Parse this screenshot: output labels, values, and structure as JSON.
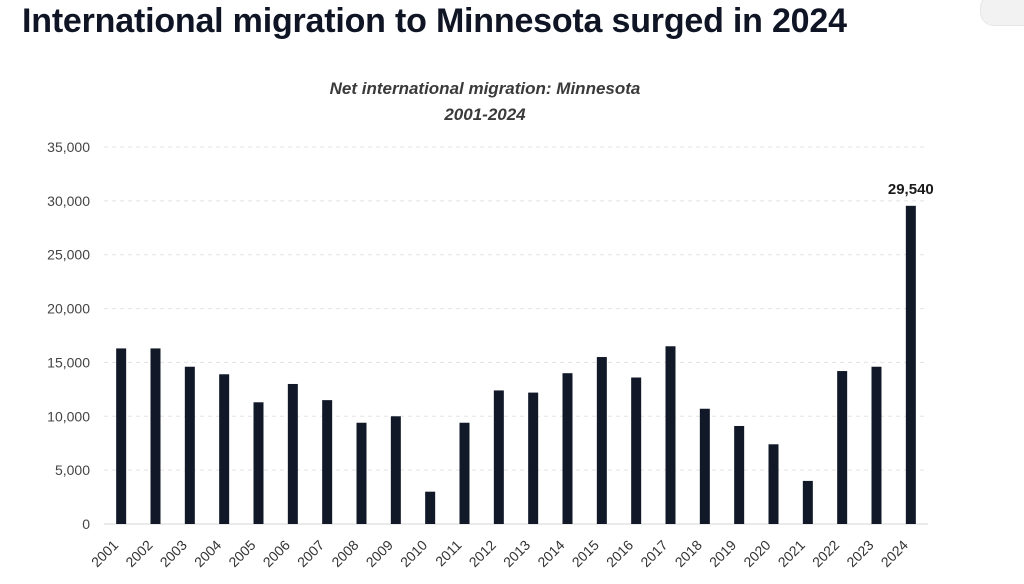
{
  "headline": "International migration to Minnesota surged in 2024",
  "chart_data": {
    "type": "bar",
    "title": "Net international migration: Minnesota",
    "subtitle": "2001-2024",
    "xlabel": "",
    "ylabel": "",
    "ylim": [
      0,
      35000
    ],
    "yticks": [
      0,
      5000,
      10000,
      15000,
      20000,
      25000,
      30000,
      35000
    ],
    "ytick_labels": [
      "0",
      "5,000",
      "10,000",
      "15,000",
      "20,000",
      "25,000",
      "30,000",
      "35,000"
    ],
    "grid": true,
    "bar_color": "#111827",
    "categories": [
      "2001",
      "2002",
      "2003",
      "2004",
      "2005",
      "2006",
      "2007",
      "2008",
      "2009",
      "2010",
      "2011",
      "2012",
      "2013",
      "2014",
      "2015",
      "2016",
      "2017",
      "2018",
      "2019",
      "2020",
      "2021",
      "2022",
      "2023",
      "2024"
    ],
    "values": [
      16300,
      16300,
      14600,
      13900,
      11300,
      13000,
      11500,
      9400,
      10000,
      3000,
      9400,
      12400,
      12200,
      14000,
      15500,
      13600,
      16500,
      10700,
      9100,
      7400,
      4000,
      14200,
      14600,
      29540
    ],
    "annotations": [
      {
        "category": "2024",
        "text": "29,540"
      }
    ]
  }
}
